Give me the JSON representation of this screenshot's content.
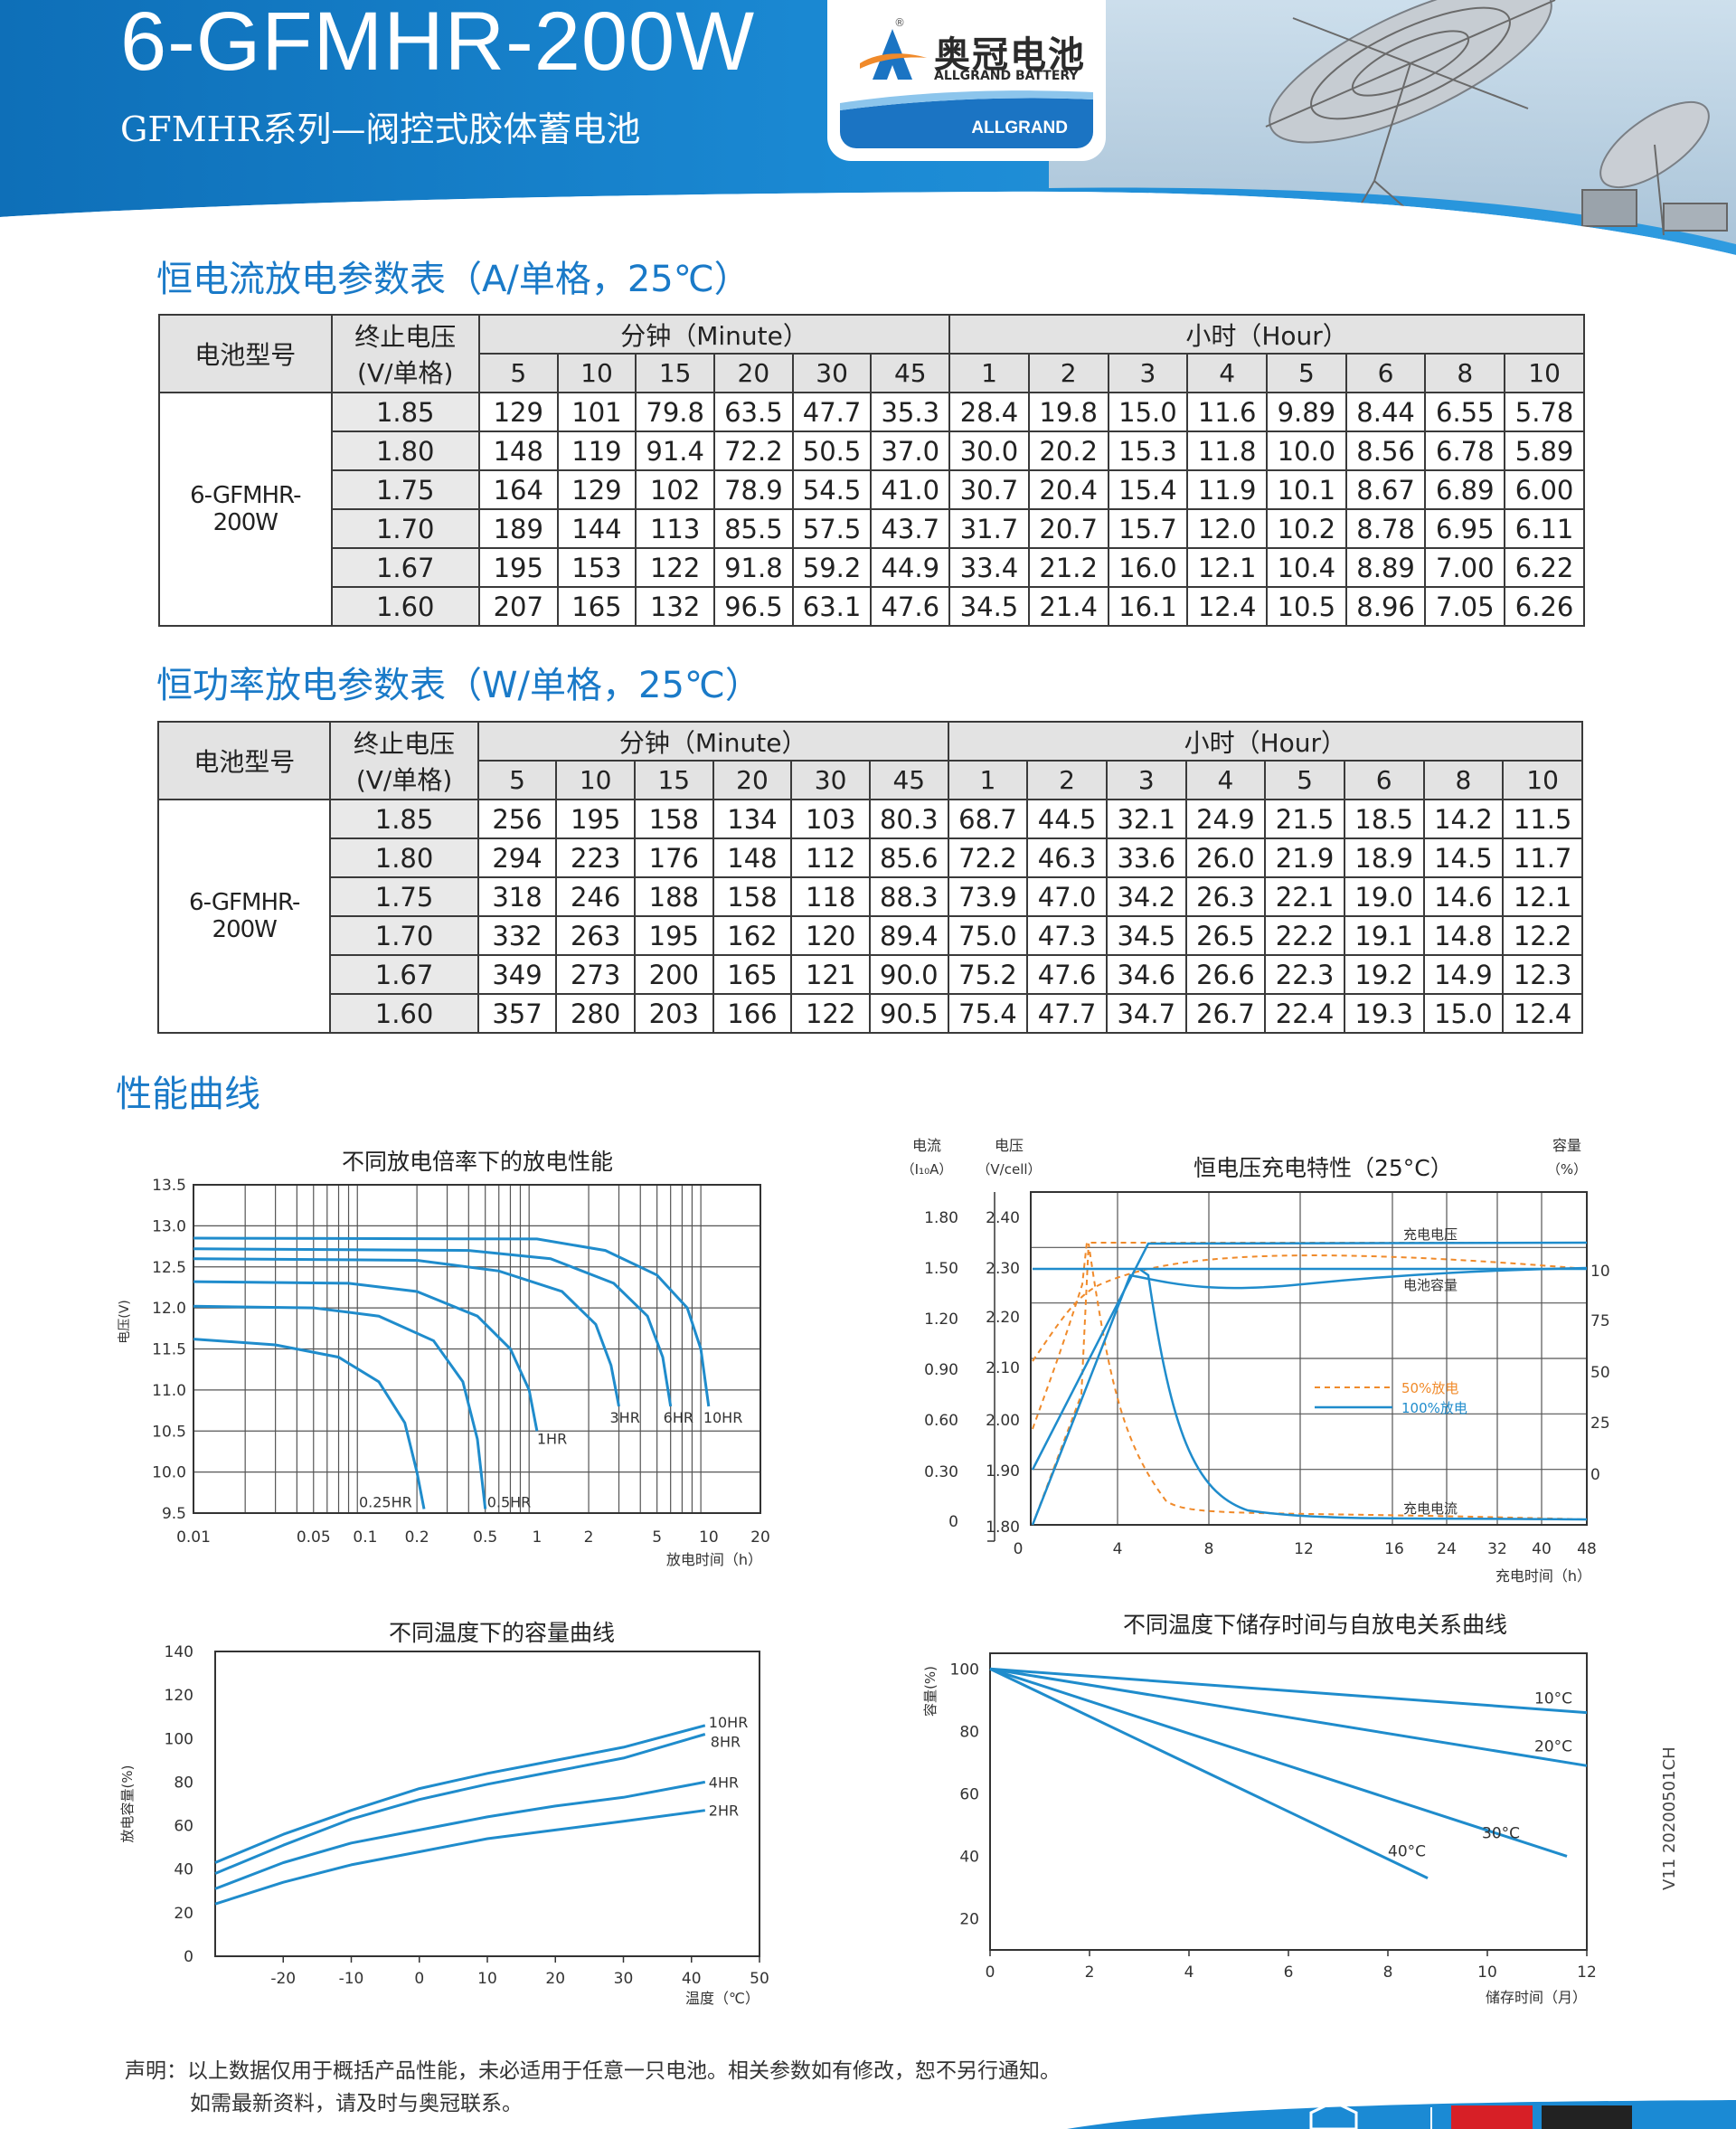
{
  "header": {
    "title": "6-GFMHR-200W",
    "subtitle": "GFMHR系列—阀控式胶体蓄电池",
    "logo_cn": "奥冠电池",
    "logo_en": "ALLGRAND BATTERY",
    "logo_brand": "ALLGRAND",
    "logo_reg": "®"
  },
  "colors": {
    "brand_blue": "#1a7ac8",
    "header_blue": "#1b8ad4",
    "curve_blue": "#1f8ccc",
    "curve_orange": "#f08a2a",
    "table_header_bg": "#e3e3e3"
  },
  "tables": [
    {
      "title": "恒电流放电参数表（A/单格，25℃）",
      "h_model": "电池型号",
      "h_voltage_1": "终止电压",
      "h_voltage_2": "(V/单格)",
      "h_minute": "分钟（Minute）",
      "h_hour": "小时（Hour）",
      "minutes": [
        "5",
        "10",
        "15",
        "20",
        "30",
        "45"
      ],
      "hours": [
        "1",
        "2",
        "3",
        "4",
        "5",
        "6",
        "8",
        "10"
      ],
      "model": "6-GFMHR-200W",
      "rows": [
        {
          "v": "1.85",
          "d": [
            "129",
            "101",
            "79.8",
            "63.5",
            "47.7",
            "35.3",
            "28.4",
            "19.8",
            "15.0",
            "11.6",
            "9.89",
            "8.44",
            "6.55",
            "5.78"
          ]
        },
        {
          "v": "1.80",
          "d": [
            "148",
            "119",
            "91.4",
            "72.2",
            "50.5",
            "37.0",
            "30.0",
            "20.2",
            "15.3",
            "11.8",
            "10.0",
            "8.56",
            "6.78",
            "5.89"
          ]
        },
        {
          "v": "1.75",
          "d": [
            "164",
            "129",
            "102",
            "78.9",
            "54.5",
            "41.0",
            "30.7",
            "20.4",
            "15.4",
            "11.9",
            "10.1",
            "8.67",
            "6.89",
            "6.00"
          ]
        },
        {
          "v": "1.70",
          "d": [
            "189",
            "144",
            "113",
            "85.5",
            "57.5",
            "43.7",
            "31.7",
            "20.7",
            "15.7",
            "12.0",
            "10.2",
            "8.78",
            "6.95",
            "6.11"
          ]
        },
        {
          "v": "1.67",
          "d": [
            "195",
            "153",
            "122",
            "91.8",
            "59.2",
            "44.9",
            "33.4",
            "21.2",
            "16.0",
            "12.1",
            "10.4",
            "8.89",
            "7.00",
            "6.22"
          ]
        },
        {
          "v": "1.60",
          "d": [
            "207",
            "165",
            "132",
            "96.5",
            "63.1",
            "47.6",
            "34.5",
            "21.4",
            "16.1",
            "12.4",
            "10.5",
            "8.96",
            "7.05",
            "6.26"
          ]
        }
      ]
    },
    {
      "title": "恒功率放电参数表（W/单格，25℃）",
      "h_model": "电池型号",
      "h_voltage_1": "终止电压",
      "h_voltage_2": "(V/单格)",
      "h_minute": "分钟（Minute）",
      "h_hour": "小时（Hour）",
      "minutes": [
        "5",
        "10",
        "15",
        "20",
        "30",
        "45"
      ],
      "hours": [
        "1",
        "2",
        "3",
        "4",
        "5",
        "6",
        "8",
        "10"
      ],
      "model": "6-GFMHR-200W",
      "rows": [
        {
          "v": "1.85",
          "d": [
            "256",
            "195",
            "158",
            "134",
            "103",
            "80.3",
            "68.7",
            "44.5",
            "32.1",
            "24.9",
            "21.5",
            "18.5",
            "14.2",
            "11.5"
          ]
        },
        {
          "v": "1.80",
          "d": [
            "294",
            "223",
            "176",
            "148",
            "112",
            "85.6",
            "72.2",
            "46.3",
            "33.6",
            "26.0",
            "21.9",
            "18.9",
            "14.5",
            "11.7"
          ]
        },
        {
          "v": "1.75",
          "d": [
            "318",
            "246",
            "188",
            "158",
            "118",
            "88.3",
            "73.9",
            "47.0",
            "34.2",
            "26.3",
            "22.1",
            "19.0",
            "14.6",
            "12.1"
          ]
        },
        {
          "v": "1.70",
          "d": [
            "332",
            "263",
            "195",
            "162",
            "120",
            "89.4",
            "75.0",
            "47.3",
            "34.5",
            "26.5",
            "22.2",
            "19.1",
            "14.8",
            "12.2"
          ]
        },
        {
          "v": "1.67",
          "d": [
            "349",
            "273",
            "200",
            "165",
            "121",
            "90.0",
            "75.2",
            "47.6",
            "34.6",
            "26.6",
            "22.3",
            "19.2",
            "14.9",
            "12.3"
          ]
        },
        {
          "v": "1.60",
          "d": [
            "357",
            "280",
            "203",
            "166",
            "122",
            "90.5",
            "75.4",
            "47.7",
            "34.7",
            "26.7",
            "22.4",
            "19.3",
            "15.0",
            "12.4"
          ]
        }
      ]
    }
  ],
  "performance_title": "性能曲线",
  "chart_data": [
    {
      "type": "line",
      "title": "不同放电倍率下的放电性能",
      "ylabel": "电压(V)",
      "xlabel": "放电时间（h）",
      "x_scale": "log",
      "xlim": [
        0.01,
        20
      ],
      "ylim": [
        9.5,
        13.5
      ],
      "y_ticks": [
        "13.5",
        "13.0",
        "12.5",
        "12.0",
        "11.5",
        "11.0",
        "10.5",
        "10.0",
        "9.5"
      ],
      "x_ticks": [
        "0.01",
        "0.05",
        "0.1",
        "0.2",
        "0.5",
        "1",
        "2",
        "5",
        "10",
        "20"
      ],
      "series": [
        {
          "name": "0.25HR",
          "x": [
            0.01,
            0.03,
            0.07,
            0.12,
            0.17,
            0.2,
            0.22
          ],
          "y": [
            11.62,
            11.55,
            11.4,
            11.1,
            10.6,
            10.0,
            9.55
          ]
        },
        {
          "name": "0.5HR",
          "x": [
            0.01,
            0.05,
            0.12,
            0.25,
            0.37,
            0.45,
            0.5
          ],
          "y": [
            12.02,
            12.0,
            11.9,
            11.6,
            11.1,
            10.4,
            9.55
          ]
        },
        {
          "name": "1HR",
          "x": [
            0.01,
            0.08,
            0.2,
            0.45,
            0.7,
            0.9,
            1.0
          ],
          "y": [
            12.32,
            12.3,
            12.2,
            11.9,
            11.5,
            11.0,
            10.5
          ]
        },
        {
          "name": "3HR",
          "x": [
            0.01,
            0.2,
            0.6,
            1.4,
            2.2,
            2.7,
            3.0
          ],
          "y": [
            12.6,
            12.58,
            12.45,
            12.2,
            11.8,
            11.3,
            10.8
          ]
        },
        {
          "name": "6HR",
          "x": [
            0.01,
            0.4,
            1.2,
            2.8,
            4.4,
            5.4,
            6.0
          ],
          "y": [
            12.72,
            12.7,
            12.6,
            12.3,
            11.9,
            11.4,
            10.8
          ]
        },
        {
          "name": "10HR",
          "x": [
            0.01,
            1.0,
            2.5,
            5.0,
            7.5,
            9.0,
            10.0
          ],
          "y": [
            12.85,
            12.84,
            12.7,
            12.4,
            12.0,
            11.5,
            10.8
          ]
        }
      ]
    },
    {
      "type": "line",
      "title": "恒电压充电特性（25°C）",
      "left_axis_1_label": "电流",
      "left_axis_1_unit": "（I₁₀A）",
      "left_axis_2_label": "电压",
      "left_axis_2_unit": "（V/cell）",
      "right_axis_label": "容量",
      "right_axis_unit": "（%）",
      "xlabel": "充电时间（h）",
      "current_ticks": [
        "1.80",
        "1.50",
        "1.20",
        "0.90",
        "0.60",
        "0.30",
        "0"
      ],
      "voltage_ticks": [
        "2.40",
        "2.30",
        "2.20",
        "2.10",
        "2.00",
        "1.90",
        "1.80"
      ],
      "capacity_ticks": [
        "100",
        "75",
        "50",
        "25",
        "0"
      ],
      "x_ticks": [
        "0",
        "4",
        "8",
        "12",
        "16",
        "24",
        "32",
        "40",
        "48"
      ],
      "annotations": [
        "充电电压",
        "电池容量",
        "充电电流"
      ],
      "legend": [
        "50%放电",
        "100%放电"
      ],
      "series": [
        {
          "name": "50%放电",
          "color": "#f08a2a",
          "dashed": true
        }
      ]
    },
    {
      "type": "line",
      "title": "不同温度下的容量曲线",
      "ylabel": "放电容量(%)",
      "xlabel": "温度（℃）",
      "xlim": [
        -30,
        50
      ],
      "ylim": [
        0,
        140
      ],
      "y_ticks": [
        "140",
        "120",
        "100",
        "80",
        "60",
        "40",
        "20",
        "0"
      ],
      "x_ticks": [
        "-20",
        "-10",
        "0",
        "10",
        "20",
        "30",
        "40",
        "50"
      ],
      "series": [
        {
          "name": "10HR",
          "x": [
            -30,
            -20,
            -10,
            0,
            10,
            20,
            30,
            42
          ],
          "y": [
            43,
            56,
            67,
            77,
            84,
            90,
            96,
            106
          ]
        },
        {
          "name": "8HR",
          "x": [
            -30,
            -20,
            -10,
            0,
            10,
            20,
            30,
            42
          ],
          "y": [
            38,
            51,
            63,
            72,
            79,
            85,
            91,
            102
          ]
        },
        {
          "name": "4HR",
          "x": [
            -30,
            -20,
            -10,
            0,
            10,
            20,
            30,
            42
          ],
          "y": [
            31,
            43,
            52,
            58,
            64,
            69,
            73,
            80
          ]
        },
        {
          "name": "2HR",
          "x": [
            -30,
            -20,
            -10,
            0,
            10,
            20,
            30,
            42
          ],
          "y": [
            24,
            34,
            42,
            48,
            54,
            58,
            62,
            67
          ]
        }
      ]
    },
    {
      "type": "line",
      "title": "不同温度下储存时间与自放电关系曲线",
      "ylabel": "容量(%)",
      "xlabel": "储存时间（月）",
      "xlim": [
        0,
        12
      ],
      "ylim": [
        10,
        105
      ],
      "y_ticks": [
        "100",
        "80",
        "60",
        "40",
        "20"
      ],
      "x_ticks": [
        "0",
        "2",
        "4",
        "6",
        "8",
        "10",
        "12"
      ],
      "series": [
        {
          "name": "10°C",
          "x": [
            0,
            12
          ],
          "y": [
            100,
            86
          ]
        },
        {
          "name": "20°C",
          "x": [
            0,
            12
          ],
          "y": [
            100,
            69
          ]
        },
        {
          "name": "30°C",
          "x": [
            0,
            11.6
          ],
          "y": [
            100,
            40
          ]
        },
        {
          "name": "40°C",
          "x": [
            0,
            8.8
          ],
          "y": [
            100,
            33
          ]
        }
      ]
    }
  ],
  "footer": {
    "note_1": "声明：以上数据仅用于概括产品性能，未必适用于任意一只电池。相关参数如有修改，恕不另行通知。",
    "note_2": "如需最新资料，请及时与奥冠联系。",
    "version": "V11 20200501CH"
  }
}
